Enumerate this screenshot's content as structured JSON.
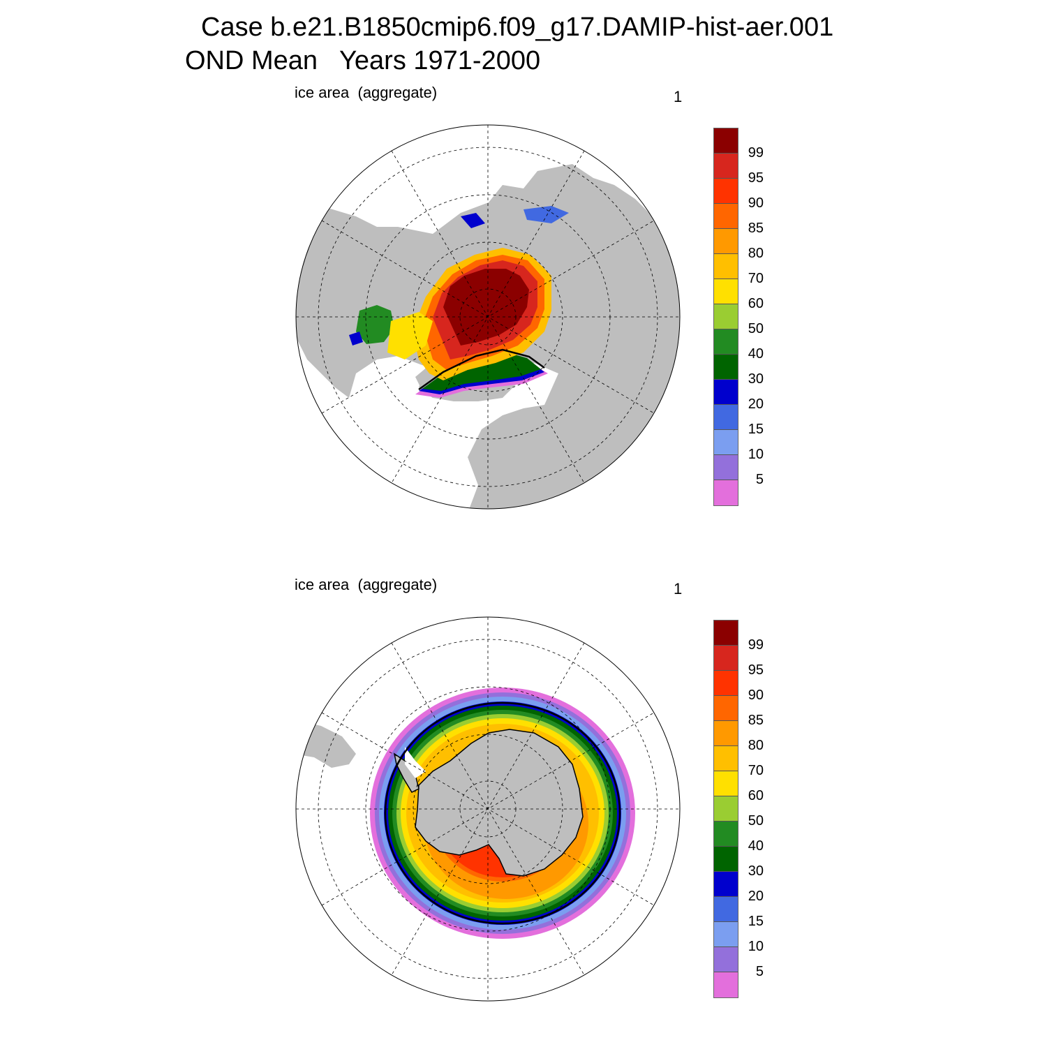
{
  "title": {
    "line1": "Case b.e21.B1850cmip6.f09_g17.DAMIP-hist-aer.001",
    "line2": "OND Mean   Years 1971-2000"
  },
  "panels": [
    {
      "id": "nh",
      "label": "ice area  (aggregate)",
      "number": "1"
    },
    {
      "id": "sh",
      "label": "ice area  (aggregate)",
      "number": "1"
    }
  ],
  "colorbar": {
    "labels": [
      "99",
      "95",
      "90",
      "85",
      "80",
      "70",
      "60",
      "50",
      "40",
      "30",
      "20",
      "15",
      "10",
      "5"
    ],
    "colors": [
      "#8b0000",
      "#d7261e",
      "#ff3300",
      "#ff6600",
      "#ff9900",
      "#ffbf00",
      "#ffe000",
      "#9acd32",
      "#228b22",
      "#006400",
      "#0000cd",
      "#4169e1",
      "#7b9ef0",
      "#9370db",
      "#e36fdc"
    ]
  },
  "map_colors": {
    "land": "#bebebe",
    "ocean": "#ffffff",
    "grid": "#000000"
  }
}
